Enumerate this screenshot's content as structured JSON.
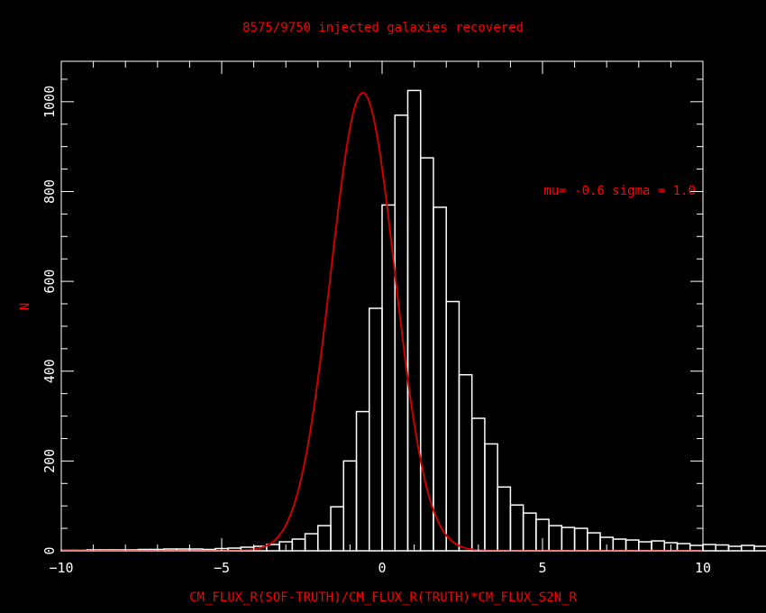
{
  "chart_data": {
    "type": "bar",
    "title": "8575/9750 injected galaxies recovered",
    "xlabel": "CM_FLUX_R(SOF-TRUTH)/CM_FLUX_R(TRUTH)*CM_FLUX_S2N_R",
    "ylabel": "N",
    "annotation": "mu= -0.6 sigma = 1.0",
    "xlim": [
      -10,
      10
    ],
    "ylim": [
      0,
      1090
    ],
    "xticks": [
      -10,
      -5,
      0,
      5,
      10
    ],
    "yticks": [
      0,
      200,
      400,
      600,
      800,
      1000
    ],
    "bin_width": 0.4,
    "bin_start": -10,
    "values": [
      1,
      1,
      2,
      2,
      2,
      2,
      3,
      3,
      4,
      4,
      4,
      3,
      5,
      6,
      8,
      10,
      14,
      20,
      26,
      38,
      56,
      98,
      200,
      310,
      540,
      770,
      970,
      1025,
      875,
      765,
      555,
      392,
      295,
      238,
      142,
      102,
      84,
      70,
      56,
      52,
      50,
      40,
      30,
      26,
      24,
      20,
      22,
      18,
      16,
      12,
      14,
      13,
      10,
      12,
      10,
      12,
      14,
      10,
      10,
      8
    ],
    "fit": {
      "type": "gaussian",
      "mu": -0.6,
      "sigma": 1.0,
      "amplitude": 1020
    },
    "colors": {
      "background": "#000000",
      "axes": "#ffffff",
      "bars": "#ffffff",
      "text": "#ff0000",
      "fit": "#cc0000"
    }
  }
}
